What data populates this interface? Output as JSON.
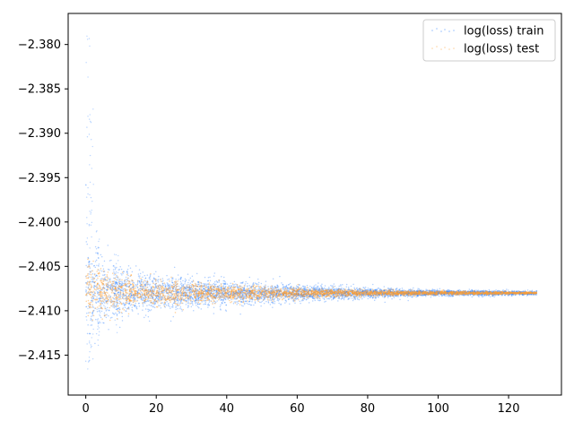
{
  "chart_data": {
    "type": "scatter",
    "title": "",
    "xlabel": "",
    "ylabel": "",
    "xlim": [
      -5,
      135
    ],
    "ylim": [
      -2.4195,
      -2.3765
    ],
    "x_ticks": [
      0,
      20,
      40,
      60,
      80,
      100,
      120
    ],
    "x_tick_labels": [
      "0",
      "20",
      "40",
      "60",
      "80",
      "100",
      "120"
    ],
    "y_ticks": [
      -2.38,
      -2.385,
      -2.39,
      -2.395,
      -2.4,
      -2.405,
      -2.41,
      -2.415
    ],
    "y_tick_labels": [
      "−2.380",
      "−2.385",
      "−2.390",
      "−2.395",
      "−2.400",
      "−2.405",
      "−2.410",
      "−2.415"
    ],
    "grid": false,
    "legend_position": "top-right",
    "series": [
      {
        "name": "log(loss) train",
        "color": "#1f77ff",
        "x_range": [
          0,
          128
        ],
        "center": [
          [
            0,
            -2.4078
          ],
          [
            2,
            -2.4079
          ],
          [
            5,
            -2.408
          ],
          [
            10,
            -2.408
          ],
          [
            20,
            -2.408
          ],
          [
            40,
            -2.408
          ],
          [
            60,
            -2.408
          ],
          [
            80,
            -2.408
          ],
          [
            100,
            -2.408
          ],
          [
            128,
            -2.408
          ]
        ],
        "spread_halfwidth": [
          [
            0,
            0.006
          ],
          [
            2,
            0.004
          ],
          [
            5,
            0.003
          ],
          [
            10,
            0.0024
          ],
          [
            20,
            0.0018
          ],
          [
            40,
            0.0012
          ],
          [
            60,
            0.0008
          ],
          [
            80,
            0.0005
          ],
          [
            100,
            0.0003
          ],
          [
            128,
            0.0002
          ]
        ],
        "outlier_extent": [
          [
            0,
            -2.4185,
            -2.378
          ],
          [
            1,
            -2.4155,
            -2.387
          ],
          [
            3,
            -2.414,
            -2.401
          ],
          [
            8,
            -2.4125,
            -2.403
          ]
        ]
      },
      {
        "name": "log(loss) test",
        "color": "#ff9f33",
        "x_range": [
          0,
          128
        ],
        "center": [
          [
            0,
            -2.4078
          ],
          [
            5,
            -2.4079
          ],
          [
            20,
            -2.408
          ],
          [
            60,
            -2.408
          ],
          [
            128,
            -2.408
          ]
        ],
        "spread_halfwidth": [
          [
            0,
            0.0032
          ],
          [
            5,
            0.0022
          ],
          [
            10,
            0.0018
          ],
          [
            20,
            0.0013
          ],
          [
            40,
            0.0008
          ],
          [
            60,
            0.0005
          ],
          [
            80,
            0.0003
          ],
          [
            100,
            0.0002
          ],
          [
            128,
            0.0001
          ]
        ]
      }
    ]
  }
}
